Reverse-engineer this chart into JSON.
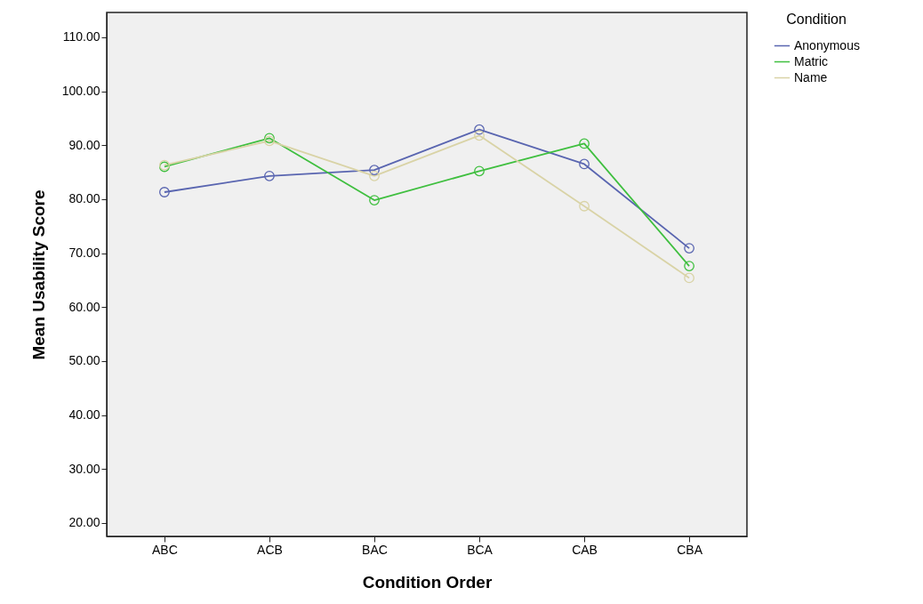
{
  "chart_data": {
    "type": "line",
    "xlabel": "Condition Order",
    "ylabel": "Mean Usability Score",
    "legend_title": "Condition",
    "categories": [
      "ABC",
      "ACB",
      "BAC",
      "BCA",
      "CAB",
      "CBA"
    ],
    "series": [
      {
        "name": "Anonymous",
        "color": "#5965b0",
        "values": [
          81.3,
          84.3,
          85.4,
          92.9,
          86.5,
          70.9
        ]
      },
      {
        "name": "Matric",
        "color": "#3fbf3f",
        "values": [
          86.0,
          91.3,
          79.8,
          85.2,
          90.3,
          67.6
        ]
      },
      {
        "name": "Name",
        "color": "#d9d3a6",
        "values": [
          86.3,
          90.8,
          84.3,
          91.8,
          78.7,
          65.4
        ]
      }
    ],
    "ylim": [
      17.5,
      114.6
    ],
    "yticks": [
      {
        "value": 20,
        "label": "20.00"
      },
      {
        "value": 30,
        "label": "30.00"
      },
      {
        "value": 40,
        "label": "40.00"
      },
      {
        "value": 50,
        "label": "50.00"
      },
      {
        "value": 60,
        "label": "60.00"
      },
      {
        "value": 70,
        "label": "70.00"
      },
      {
        "value": 80,
        "label": "80.00"
      },
      {
        "value": 90,
        "label": "90.00"
      },
      {
        "value": 100,
        "label": "100.00"
      },
      {
        "value": 110,
        "label": "110.00"
      }
    ],
    "grid": false,
    "legend": "right",
    "marker": "circle",
    "line_style": "solid"
  }
}
